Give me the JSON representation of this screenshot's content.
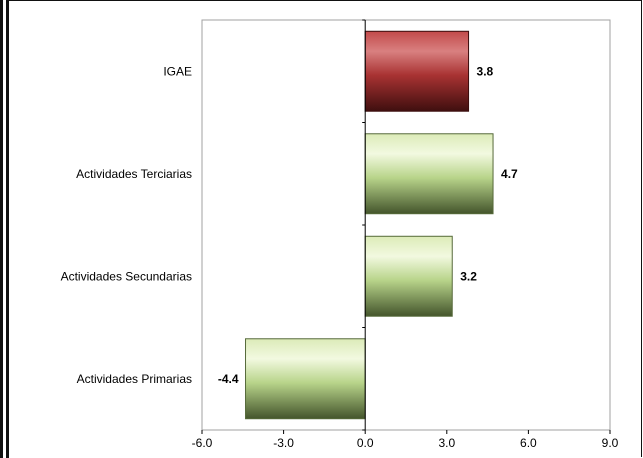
{
  "chart_data": {
    "type": "bar",
    "orientation": "horizontal",
    "categories": [
      "IGAE",
      "Actividades Terciarias",
      "Actividades Secundarias",
      "Actividades Primarias"
    ],
    "values": [
      3.8,
      4.7,
      3.2,
      -4.4
    ],
    "data_labels": [
      "3.8",
      "4.7",
      "3.2",
      "-4.4"
    ],
    "highlight_category": "IGAE",
    "xlim": [
      -6.0,
      9.0
    ],
    "x_ticks": [
      -6.0,
      -3.0,
      0.0,
      3.0,
      6.0,
      9.0
    ],
    "x_tick_labels": [
      "-6.0",
      "-3.0",
      "0.0",
      "3.0",
      "6.0",
      "9.0"
    ],
    "grid": false,
    "colors": {
      "highlight_dark": "#4a1212",
      "highlight_mid": "#b03a3a",
      "highlight_light": "#d98080",
      "green_dark": "#4a5a32",
      "green_mid": "#b8d48a",
      "green_light": "#eef6d8",
      "plot_border": "#a0a0a0",
      "axis": "#000000"
    }
  }
}
